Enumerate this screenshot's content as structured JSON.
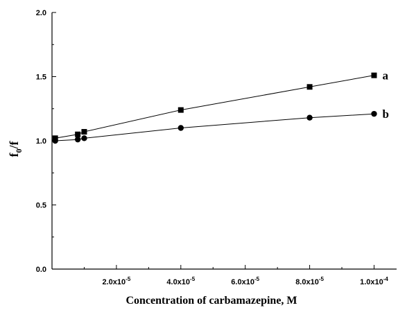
{
  "chart_data": {
    "type": "line",
    "xlabel": "Concentration of carbamazepine, M",
    "ylabel_main": "f",
    "ylabel_sub": "0",
    "ylabel_tail": "/f",
    "xlim": [
      0,
      0.000107
    ],
    "ylim": [
      0,
      2.0
    ],
    "x_ticks": [
      2e-05,
      4e-05,
      6e-05,
      8e-05,
      0.0001
    ],
    "x_tick_labels": [
      {
        "mantissa": "2.0x10",
        "exp": "-5"
      },
      {
        "mantissa": "4.0x10",
        "exp": "-5"
      },
      {
        "mantissa": "6.0x10",
        "exp": "-5"
      },
      {
        "mantissa": "8.0x10",
        "exp": "-5"
      },
      {
        "mantissa": "1.0x10",
        "exp": "-4"
      }
    ],
    "y_ticks": [
      0.0,
      0.5,
      1.0,
      1.5,
      2.0
    ],
    "y_tick_labels": [
      "0.0",
      "0.5",
      "1.0",
      "1.5",
      "2.0"
    ],
    "grid": false,
    "series": [
      {
        "name": "a",
        "marker": "square",
        "x": [
          1e-06,
          8e-06,
          1e-05,
          4e-05,
          8e-05,
          0.0001
        ],
        "y": [
          1.02,
          1.05,
          1.07,
          1.24,
          1.42,
          1.51
        ]
      },
      {
        "name": "b",
        "marker": "circle",
        "x": [
          1e-06,
          8e-06,
          1e-05,
          4e-05,
          8e-05,
          0.0001
        ],
        "y": [
          1.0,
          1.01,
          1.02,
          1.1,
          1.18,
          1.21
        ]
      }
    ]
  }
}
